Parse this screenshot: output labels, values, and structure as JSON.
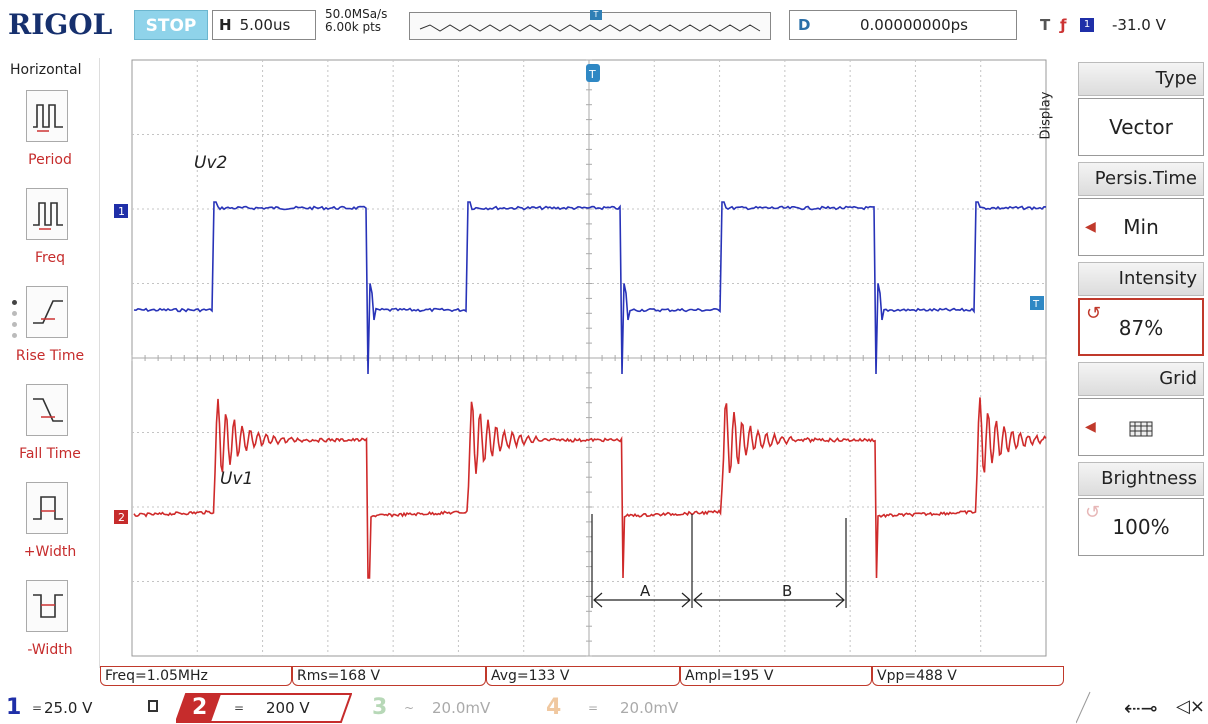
{
  "topbar": {
    "brand": "RIGOL",
    "status": "STOP",
    "h_label": "H",
    "h_value": "5.00us",
    "sample_rate": "50.0MSa/s",
    "points": "6.00k pts",
    "trigger_marker": "T",
    "d_label": "D",
    "d_value": "0.00000000ps",
    "t_label": "T",
    "t_edge": "ƒ",
    "t_channel": "1",
    "t_level": "-31.0 V"
  },
  "left_menu": {
    "title": "Horizontal",
    "items": [
      {
        "label": "Period",
        "icon": "period-icon"
      },
      {
        "label": "Freq",
        "icon": "freq-icon"
      },
      {
        "label": "Rise Time",
        "icon": "rise-time-icon"
      },
      {
        "label": "Fall Time",
        "icon": "fall-time-icon"
      },
      {
        "label": "+Width",
        "icon": "plus-width-icon"
      },
      {
        "label": "-Width",
        "icon": "minus-width-icon"
      }
    ]
  },
  "screen": {
    "ch1_marker": "1",
    "ch2_marker": "2",
    "trigger_level_marker": "T",
    "trigger_top_marker": "T",
    "label_uv2": "Uv2",
    "label_uv1": "Uv1",
    "label_a": "A",
    "label_b": "B",
    "colors": {
      "ch1": "#2833b8",
      "ch2": "#cf2a2a",
      "grid": "#b5b5b5",
      "trigger": "#2f88c4"
    }
  },
  "right_menu": {
    "tab": "Display",
    "items": [
      {
        "head": "Type",
        "value": "Vector"
      },
      {
        "head": "Persis.Time",
        "value": "Min"
      },
      {
        "head": "Intensity",
        "value": "87%"
      },
      {
        "head": "Grid",
        "value": "grid-icon"
      },
      {
        "head": "Brightness",
        "value": "100%"
      }
    ]
  },
  "measurements": {
    "freq": "Freq=1.05MHz",
    "rms": "Rms=168 V",
    "avg": "Avg=133 V",
    "ampl": "Ampl=195 V",
    "vpp": "Vpp=488 V"
  },
  "channels": {
    "ch1": {
      "num": "1",
      "coupling": "=",
      "scale": "25.0 V"
    },
    "ch2": {
      "num": "2",
      "coupling": "=",
      "scale": "200 V"
    },
    "ch3": {
      "num": "3",
      "coupling": "~",
      "scale": "20.0mV"
    },
    "ch4": {
      "num": "4",
      "coupling": "=",
      "scale": "20.0mV"
    }
  }
}
